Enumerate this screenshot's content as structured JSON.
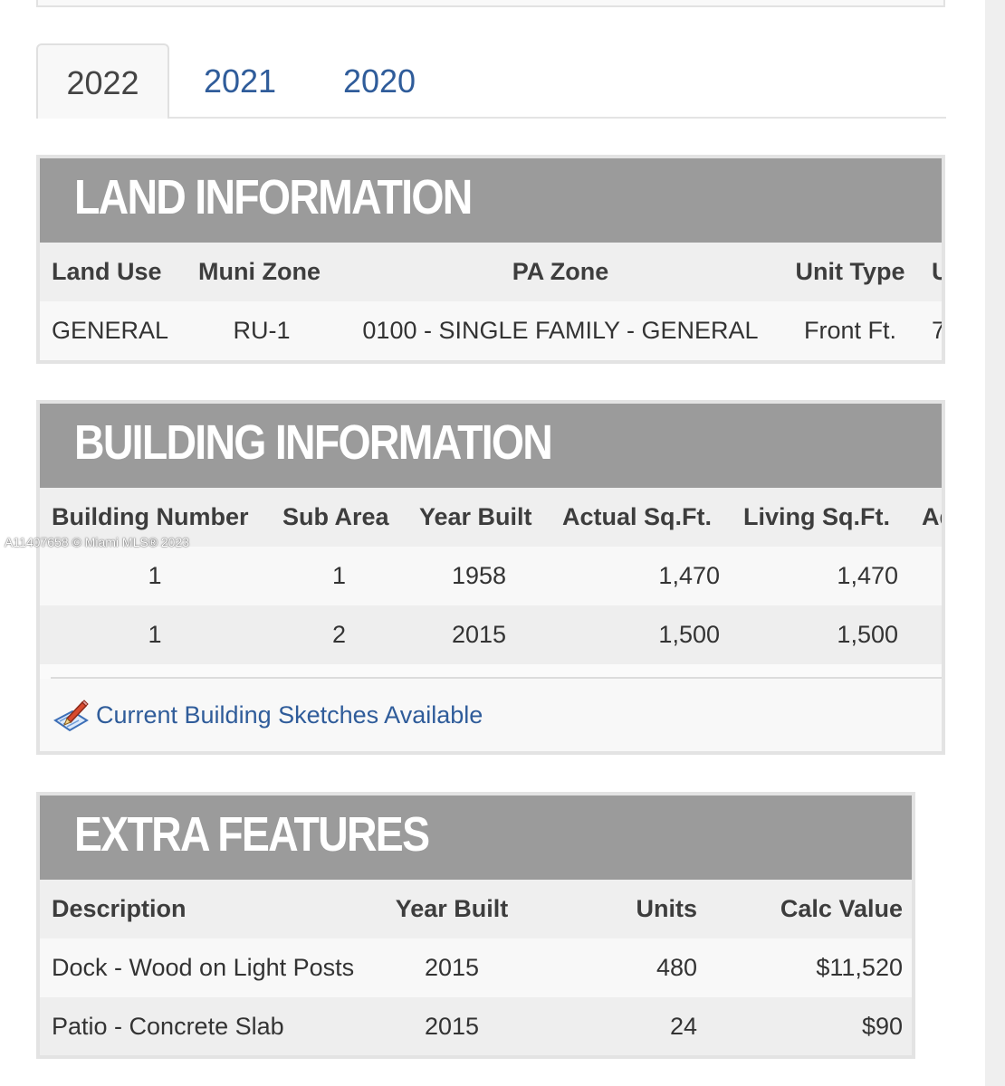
{
  "tabs": [
    "2022",
    "2021",
    "2020"
  ],
  "land": {
    "title": "LAND INFORMATION",
    "headers": [
      "Land Use",
      "Muni Zone",
      "PA Zone",
      "Unit Type",
      "U"
    ],
    "row": [
      "GENERAL",
      "RU-1",
      "0100 - SINGLE FAMILY - GENERAL",
      "Front Ft.",
      "7"
    ]
  },
  "building": {
    "title": "BUILDING INFORMATION",
    "headers": [
      "Building Number",
      "Sub Area",
      "Year Built",
      "Actual Sq.Ft.",
      "Living Sq.Ft.",
      "Ad"
    ],
    "rows": [
      [
        "1",
        "1",
        "1958",
        "1,470",
        "1,470"
      ],
      [
        "1",
        "2",
        "2015",
        "1,500",
        "1,500"
      ]
    ],
    "sketch_link": "Current Building Sketches Available",
    "sketch_icon": "sketch-pencil-icon"
  },
  "extra": {
    "title": "EXTRA FEATURES",
    "headers": [
      "Description",
      "Year Built",
      "Units",
      "Calc Value"
    ],
    "rows": [
      [
        "Dock - Wood on Light Posts",
        "2015",
        "480",
        "$11,520"
      ],
      [
        "Patio - Concrete Slab",
        "2015",
        "24",
        "$90"
      ]
    ]
  },
  "watermark": "A11407658 © Miami MLS® 2023",
  "colors": {
    "panel_header": "#9b9b9b",
    "link": "#2f5c9a",
    "header_row": "#efefef"
  }
}
